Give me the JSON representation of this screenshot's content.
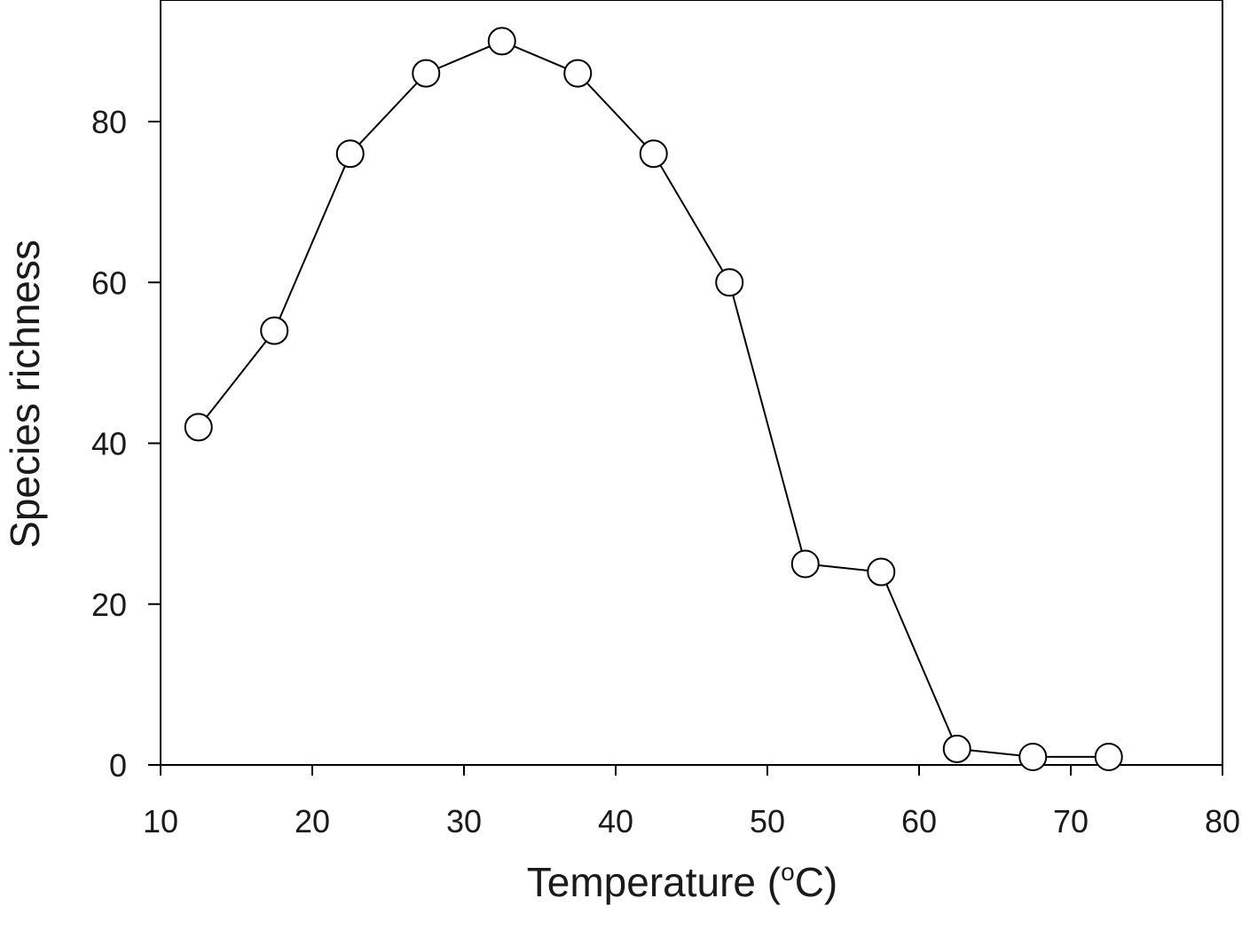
{
  "chart_data": {
    "type": "line",
    "title": "",
    "xlabel": "Temperature",
    "xlabel_unit_prefix": "(",
    "xlabel_unit_sup": "o",
    "xlabel_unit_suffix": "C)",
    "ylabel": "Species richness",
    "xlim": [
      10,
      80
    ],
    "ylim": [
      0,
      95
    ],
    "xticks": [
      10,
      20,
      30,
      40,
      50,
      60,
      70,
      80
    ],
    "yticks": [
      0,
      20,
      40,
      60,
      80
    ],
    "grid": false,
    "marker": "open-circle",
    "line_color": "#000000",
    "marker_fill": "#ffffff",
    "series": [
      {
        "x": [
          12.5,
          17.5,
          22.5,
          27.5,
          32.5,
          37.5,
          42.5,
          47.5,
          52.5,
          57.5,
          62.5,
          67.5,
          72.5
        ],
        "y": [
          42,
          54,
          76,
          86,
          90,
          86,
          76,
          60,
          25,
          24,
          2,
          1,
          1
        ]
      }
    ]
  }
}
